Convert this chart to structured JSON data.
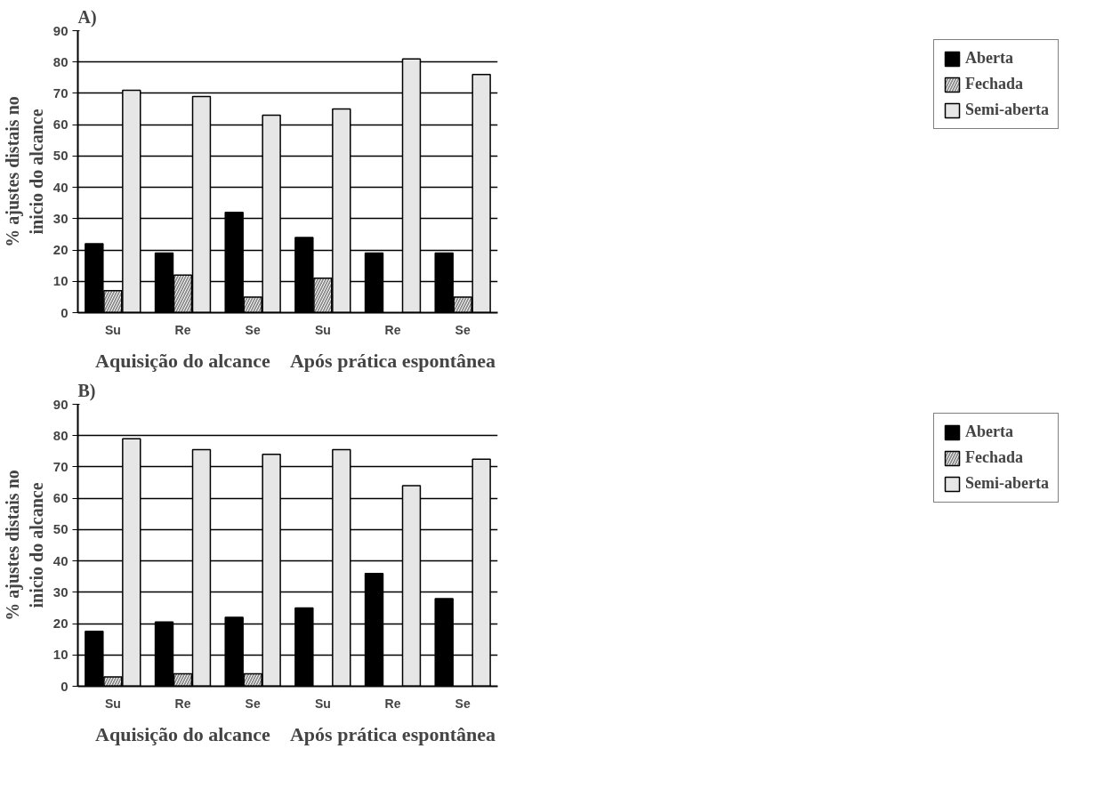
{
  "chart_data": [
    {
      "type": "bar",
      "title": "A)",
      "ylabel": "% ajustes distais no\ninicio do alcance",
      "categories": [
        "Su",
        "Re",
        "Se",
        "Su",
        "Re",
        "Se"
      ],
      "annotations": [
        "Aquisição do alcance",
        "Após prática espontânea"
      ],
      "series": [
        {
          "name": "Aberta",
          "color": "#000000",
          "values": [
            22,
            19,
            32,
            24,
            19,
            19
          ]
        },
        {
          "name": "Fechada",
          "color": "#8c8c8c",
          "values": [
            7,
            12,
            5,
            11,
            null,
            5
          ]
        },
        {
          "name": "Semi-aberta",
          "color": "#e6e6e6",
          "values": [
            71,
            69,
            63,
            65,
            81,
            76
          ]
        }
      ],
      "ylim": [
        0,
        90
      ],
      "yticks": [
        0,
        10,
        20,
        30,
        40,
        50,
        60,
        70,
        80,
        90
      ],
      "grid": "y",
      "legend": "right"
    },
    {
      "type": "bar",
      "title": "B)",
      "ylabel": "% ajustes distais no\ninicio do alcance",
      "categories": [
        "Su",
        "Re",
        "Se",
        "Su",
        "Re",
        "Se"
      ],
      "annotations": [
        "Aquisição do alcance",
        "Após prática espontânea"
      ],
      "series": [
        {
          "name": "Aberta",
          "color": "#000000",
          "values": [
            17.5,
            20.5,
            22,
            25,
            36,
            28
          ]
        },
        {
          "name": "Fechada",
          "color": "#8c8c8c",
          "values": [
            3,
            4,
            4,
            null,
            null,
            null
          ]
        },
        {
          "name": "Semi-aberta",
          "color": "#e6e6e6",
          "values": [
            79,
            75.5,
            74,
            75.5,
            64,
            72.5
          ]
        }
      ],
      "ylim": [
        0,
        90
      ],
      "yticks": [
        0,
        10,
        20,
        30,
        40,
        50,
        60,
        70,
        80,
        90
      ],
      "grid": "y",
      "legend": "right"
    }
  ]
}
